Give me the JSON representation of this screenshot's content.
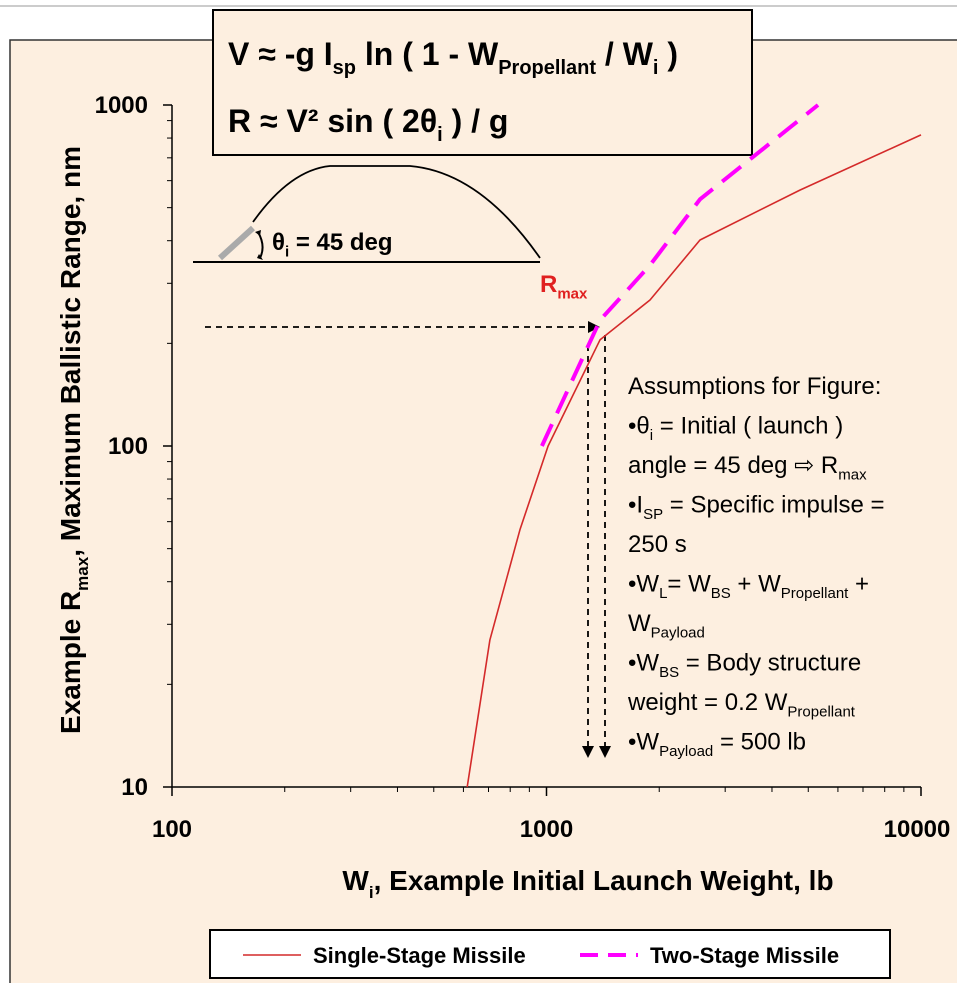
{
  "chart_data": {
    "type": "line",
    "equation_1": [
      "V ≈ -g I",
      "sp",
      " ln ( 1 - W",
      "Propellant",
      " / W",
      "i",
      " )"
    ],
    "equation_2": [
      "R ≈ V² sin ( 2θ",
      "i",
      " ) / g"
    ],
    "x_label": [
      "W",
      "i",
      ", Example Initial Launch Weight, lb"
    ],
    "y_label": [
      "Example R",
      "max",
      ", Maximum Ballistic Range, nm"
    ],
    "log_x": true,
    "log_y": true,
    "xlim": [
      100,
      10000
    ],
    "ylim": [
      10,
      1000
    ],
    "xticks": [
      100,
      1000,
      10000
    ],
    "yticks": [
      10,
      100,
      1000
    ],
    "x_minor_ticks": [
      200,
      300,
      400,
      500,
      600,
      700,
      800,
      900,
      2000,
      3000,
      4000,
      5000,
      6000,
      7000,
      8000,
      9000
    ],
    "y_minor_ticks": [
      20,
      30,
      40,
      50,
      60,
      70,
      80,
      90,
      200,
      300,
      400,
      500,
      600,
      700,
      800,
      900
    ],
    "angle_label": [
      "θ",
      "i",
      " = 45 deg"
    ],
    "rmax_label": [
      "R",
      "max"
    ],
    "assumptions": [
      [
        "Assumptions for Figure:"
      ],
      [
        "•θ",
        "i",
        " = Initial ( launch )"
      ],
      [
        "angle = 45 deg ⇨ R",
        "max"
      ],
      [
        "•I",
        "SP",
        " = Specific impulse ="
      ],
      [
        "250 s"
      ],
      [
        "•W",
        "L",
        "= W",
        "BS",
        " + W",
        "Propellant",
        " +"
      ],
      [
        "W",
        "Payload"
      ],
      [
        "•W",
        "BS",
        " = Body structure"
      ],
      [
        "weight = 0.2 W",
        "Propellant"
      ],
      [
        "•W",
        "Payload",
        " = 500 lb"
      ]
    ],
    "series": [
      {
        "name": "Single-Stage Missile",
        "color": "#d42a2a",
        "dashed": false,
        "x": [
          614,
          706,
          850,
          1010,
          1390,
          1890,
          2570,
          4750,
          10000
        ],
        "values": [
          10,
          27,
          57,
          100,
          205,
          268,
          402,
          563,
          817
        ]
      },
      {
        "name": "Two-Stage Missile",
        "color": "#ff00ff",
        "dashed": true,
        "x": [
          972,
          1390,
          1890,
          2570,
          5310
        ],
        "values": [
          100,
          234,
          339,
          529,
          1000
        ]
      }
    ],
    "legend": "bottom"
  }
}
